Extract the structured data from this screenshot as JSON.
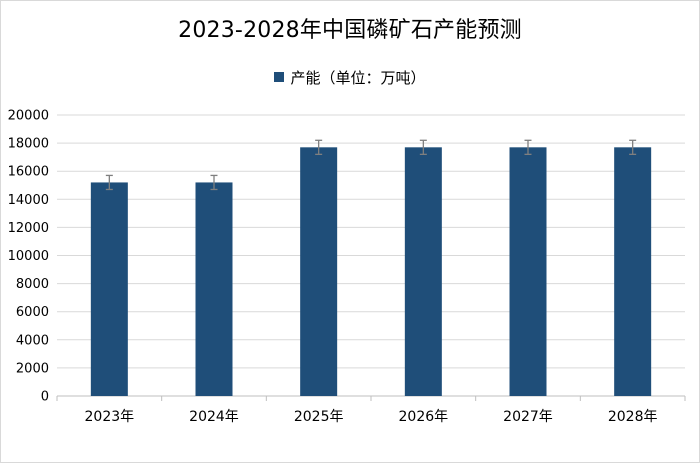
{
  "title": "2023-2028年中国磷矿石产能预测",
  "legend": {
    "label": "产能（单位：万吨）",
    "color": "#1f4e79"
  },
  "chart_data": {
    "type": "bar",
    "title": "2023-2028年中国磷矿石产能预测",
    "xlabel": "",
    "ylabel": "",
    "categories": [
      "2023年",
      "2024年",
      "2025年",
      "2026年",
      "2027年",
      "2028年"
    ],
    "series": [
      {
        "name": "产能（单位：万吨）",
        "values": [
          15200,
          15200,
          17700,
          17700,
          17700,
          17700
        ],
        "error": [
          500,
          500,
          500,
          500,
          500,
          500
        ],
        "color": "#1f4e79"
      }
    ],
    "ylim": [
      0,
      20000
    ],
    "yticks": [
      0,
      2000,
      4000,
      6000,
      8000,
      10000,
      12000,
      14000,
      16000,
      18000,
      20000
    ],
    "grid": true,
    "legend_position": "top-center"
  }
}
